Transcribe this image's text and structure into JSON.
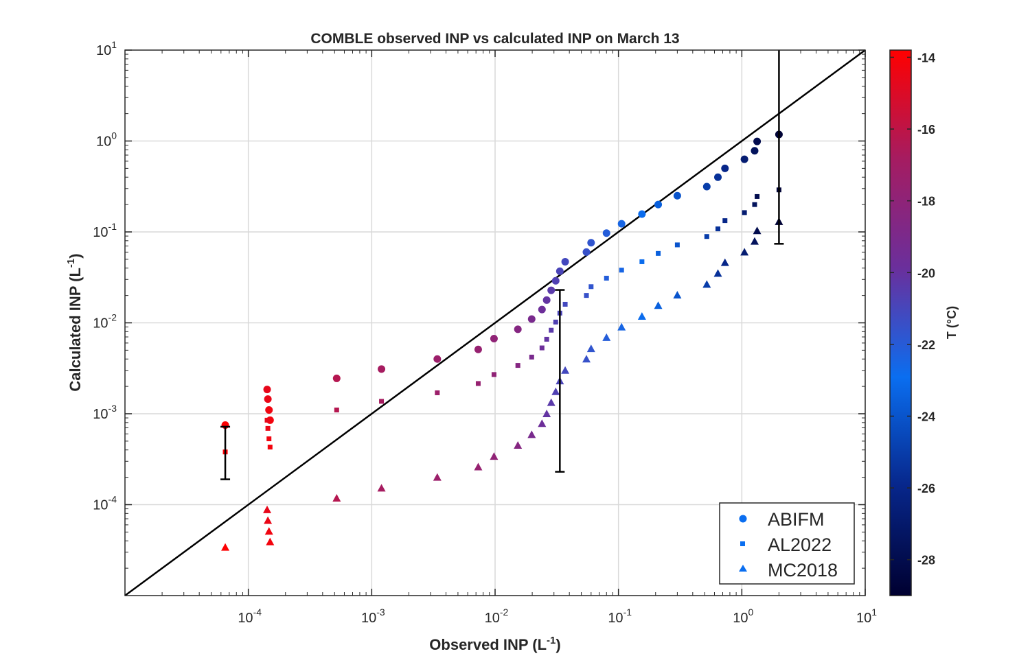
{
  "chart_data": {
    "type": "scatter",
    "title": "COMBLE observed INP vs calculated INP on March 13",
    "xlabel": "Observed INP (L",
    "ylabel": "Calculated INP (L",
    "label_unit_exp": "-1",
    "label_close": ")",
    "x_scale": "log",
    "y_scale": "log",
    "xlim": [
      1e-05,
      10
    ],
    "ylim": [
      1e-05,
      10
    ],
    "grid": true,
    "x_ticks": [
      {
        "v": 0.0001,
        "base": "10",
        "exp": "-4"
      },
      {
        "v": 0.001,
        "base": "10",
        "exp": "-3"
      },
      {
        "v": 0.01,
        "base": "10",
        "exp": "-2"
      },
      {
        "v": 0.1,
        "base": "10",
        "exp": "-1"
      },
      {
        "v": 1,
        "base": "10",
        "exp": "0"
      },
      {
        "v": 10,
        "base": "10",
        "exp": "1"
      }
    ],
    "y_ticks": [
      {
        "v": 0.0001,
        "base": "10",
        "exp": "-4"
      },
      {
        "v": 0.001,
        "base": "10",
        "exp": "-3"
      },
      {
        "v": 0.01,
        "base": "10",
        "exp": "-2"
      },
      {
        "v": 0.1,
        "base": "10",
        "exp": "-1"
      },
      {
        "v": 1,
        "base": "10",
        "exp": "0"
      },
      {
        "v": 10,
        "base": "10",
        "exp": "1"
      }
    ],
    "one_to_one_line": true,
    "legend": {
      "placement": "bottom-right",
      "entries": [
        "ABIFM",
        "AL2022",
        "MC2018"
      ]
    },
    "colorbar": {
      "label": "T (°C)",
      "range": [
        -29,
        -13.8
      ],
      "ticks": [
        "-14",
        "-16",
        "-18",
        "-20",
        "-22",
        "-24",
        "-26",
        "-28"
      ],
      "tick_values": [
        -14,
        -16,
        -18,
        -20,
        -22,
        -24,
        -26,
        -28
      ],
      "colormap": [
        "#ff0000",
        "#a51c61",
        "#6a2f9c",
        "#0a6ef0",
        "#07268a",
        "#000030"
      ]
    },
    "series": [
      {
        "name": "ABIFM",
        "marker": "circle",
        "points": [
          {
            "x": 6.5e-05,
            "y": 0.00075,
            "t": -13.9
          },
          {
            "x": 0.000142,
            "y": 0.00185,
            "t": -14.6
          },
          {
            "x": 0.000144,
            "y": 0.00145,
            "t": -14.5
          },
          {
            "x": 0.000147,
            "y": 0.0011,
            "t": -14.3
          },
          {
            "x": 0.00015,
            "y": 0.00085,
            "t": -14.2
          },
          {
            "x": 0.00052,
            "y": 0.00245,
            "t": -16.3
          },
          {
            "x": 0.0012,
            "y": 0.0031,
            "t": -16.8
          },
          {
            "x": 0.0034,
            "y": 0.004,
            "t": -17.3
          },
          {
            "x": 0.0073,
            "y": 0.0051,
            "t": -17.6
          },
          {
            "x": 0.0098,
            "y": 0.0067,
            "t": -17.9
          },
          {
            "x": 0.0153,
            "y": 0.0085,
            "t": -18.5
          },
          {
            "x": 0.0198,
            "y": 0.011,
            "t": -19.1
          },
          {
            "x": 0.024,
            "y": 0.014,
            "t": -19.7
          },
          {
            "x": 0.0262,
            "y": 0.0178,
            "t": -20.1
          },
          {
            "x": 0.0285,
            "y": 0.0228,
            "t": -20.4
          },
          {
            "x": 0.031,
            "y": 0.029,
            "t": -20.7
          },
          {
            "x": 0.0335,
            "y": 0.037,
            "t": -20.9
          },
          {
            "x": 0.037,
            "y": 0.047,
            "t": -21.1
          },
          {
            "x": 0.055,
            "y": 0.06,
            "t": -21.5
          },
          {
            "x": 0.06,
            "y": 0.076,
            "t": -21.7
          },
          {
            "x": 0.08,
            "y": 0.097,
            "t": -22.1
          },
          {
            "x": 0.106,
            "y": 0.123,
            "t": -22.5
          },
          {
            "x": 0.155,
            "y": 0.157,
            "t": -23.0
          },
          {
            "x": 0.21,
            "y": 0.2,
            "t": -23.5
          },
          {
            "x": 0.3,
            "y": 0.25,
            "t": -24.0
          },
          {
            "x": 0.52,
            "y": 0.315,
            "t": -25.0
          },
          {
            "x": 0.64,
            "y": 0.4,
            "t": -25.5
          },
          {
            "x": 0.73,
            "y": 0.5,
            "t": -26.0
          },
          {
            "x": 1.05,
            "y": 0.63,
            "t": -26.8
          },
          {
            "x": 1.27,
            "y": 0.78,
            "t": -27.5
          },
          {
            "x": 1.33,
            "y": 0.99,
            "t": -28.0
          },
          {
            "x": 2.0,
            "y": 1.18,
            "t": -28.8
          }
        ]
      },
      {
        "name": "AL2022",
        "marker": "square",
        "points": [
          {
            "x": 6.5e-05,
            "y": 0.00038,
            "t": -13.9
          },
          {
            "x": 0.000142,
            "y": 0.00085,
            "t": -14.6
          },
          {
            "x": 0.000144,
            "y": 0.00069,
            "t": -14.5
          },
          {
            "x": 0.000147,
            "y": 0.00053,
            "t": -14.3
          },
          {
            "x": 0.00015,
            "y": 0.00043,
            "t": -14.2
          },
          {
            "x": 0.00052,
            "y": 0.0011,
            "t": -16.3
          },
          {
            "x": 0.0012,
            "y": 0.00137,
            "t": -16.8
          },
          {
            "x": 0.0034,
            "y": 0.0017,
            "t": -17.3
          },
          {
            "x": 0.0073,
            "y": 0.00215,
            "t": -17.6
          },
          {
            "x": 0.0098,
            "y": 0.0027,
            "t": -17.9
          },
          {
            "x": 0.0153,
            "y": 0.0034,
            "t": -18.5
          },
          {
            "x": 0.0198,
            "y": 0.0042,
            "t": -19.1
          },
          {
            "x": 0.024,
            "y": 0.0053,
            "t": -19.7
          },
          {
            "x": 0.0262,
            "y": 0.0066,
            "t": -20.1
          },
          {
            "x": 0.0285,
            "y": 0.0083,
            "t": -20.4
          },
          {
            "x": 0.031,
            "y": 0.0102,
            "t": -20.7
          },
          {
            "x": 0.0335,
            "y": 0.0128,
            "t": -20.9
          },
          {
            "x": 0.037,
            "y": 0.016,
            "t": -21.1
          },
          {
            "x": 0.055,
            "y": 0.02,
            "t": -21.5
          },
          {
            "x": 0.06,
            "y": 0.025,
            "t": -21.7
          },
          {
            "x": 0.08,
            "y": 0.031,
            "t": -22.1
          },
          {
            "x": 0.106,
            "y": 0.038,
            "t": -22.5
          },
          {
            "x": 0.155,
            "y": 0.047,
            "t": -23.0
          },
          {
            "x": 0.21,
            "y": 0.058,
            "t": -23.5
          },
          {
            "x": 0.3,
            "y": 0.072,
            "t": -24.0
          },
          {
            "x": 0.52,
            "y": 0.089,
            "t": -25.0
          },
          {
            "x": 0.64,
            "y": 0.108,
            "t": -25.5
          },
          {
            "x": 0.73,
            "y": 0.133,
            "t": -26.0
          },
          {
            "x": 1.05,
            "y": 0.163,
            "t": -26.8
          },
          {
            "x": 1.27,
            "y": 0.2,
            "t": -27.5
          },
          {
            "x": 1.33,
            "y": 0.245,
            "t": -28.0
          },
          {
            "x": 2.0,
            "y": 0.29,
            "t": -28.8
          }
        ]
      },
      {
        "name": "MC2018",
        "marker": "triangle",
        "points": [
          {
            "x": 6.5e-05,
            "y": 3.4e-05,
            "t": -13.9
          },
          {
            "x": 0.000142,
            "y": 8.8e-05,
            "t": -14.6
          },
          {
            "x": 0.000144,
            "y": 6.7e-05,
            "t": -14.5
          },
          {
            "x": 0.000147,
            "y": 5.1e-05,
            "t": -14.3
          },
          {
            "x": 0.00015,
            "y": 3.9e-05,
            "t": -14.2
          },
          {
            "x": 0.00052,
            "y": 0.000118,
            "t": -16.3
          },
          {
            "x": 0.0012,
            "y": 0.000152,
            "t": -16.8
          },
          {
            "x": 0.0034,
            "y": 0.0002,
            "t": -17.3
          },
          {
            "x": 0.0073,
            "y": 0.00026,
            "t": -17.6
          },
          {
            "x": 0.0098,
            "y": 0.00034,
            "t": -17.9
          },
          {
            "x": 0.0153,
            "y": 0.00045,
            "t": -18.5
          },
          {
            "x": 0.0198,
            "y": 0.00059,
            "t": -19.1
          },
          {
            "x": 0.024,
            "y": 0.00078,
            "t": -19.7
          },
          {
            "x": 0.0262,
            "y": 0.001,
            "t": -20.1
          },
          {
            "x": 0.0285,
            "y": 0.00133,
            "t": -20.4
          },
          {
            "x": 0.031,
            "y": 0.00175,
            "t": -20.7
          },
          {
            "x": 0.0335,
            "y": 0.0023,
            "t": -20.9
          },
          {
            "x": 0.037,
            "y": 0.003,
            "t": -21.1
          },
          {
            "x": 0.055,
            "y": 0.004,
            "t": -21.5
          },
          {
            "x": 0.06,
            "y": 0.0052,
            "t": -21.7
          },
          {
            "x": 0.08,
            "y": 0.0069,
            "t": -22.1
          },
          {
            "x": 0.106,
            "y": 0.009,
            "t": -22.5
          },
          {
            "x": 0.155,
            "y": 0.0118,
            "t": -23.0
          },
          {
            "x": 0.21,
            "y": 0.0155,
            "t": -23.5
          },
          {
            "x": 0.3,
            "y": 0.0202,
            "t": -24.0
          },
          {
            "x": 0.52,
            "y": 0.0265,
            "t": -25.0
          },
          {
            "x": 0.64,
            "y": 0.035,
            "t": -25.5
          },
          {
            "x": 0.73,
            "y": 0.046,
            "t": -26.0
          },
          {
            "x": 1.05,
            "y": 0.06,
            "t": -26.8
          },
          {
            "x": 1.27,
            "y": 0.079,
            "t": -27.5
          },
          {
            "x": 1.33,
            "y": 0.103,
            "t": -28.0
          },
          {
            "x": 2.0,
            "y": 0.13,
            "t": -28.8
          }
        ]
      }
    ],
    "error_bars": [
      {
        "x": 6.5e-05,
        "y_low": 0.00019,
        "y_high": 0.00072
      },
      {
        "x": 0.0335,
        "y_low": 0.00023,
        "y_high": 0.023
      },
      {
        "x": 2.0,
        "y_low": 0.074,
        "y_high": 10
      }
    ]
  }
}
